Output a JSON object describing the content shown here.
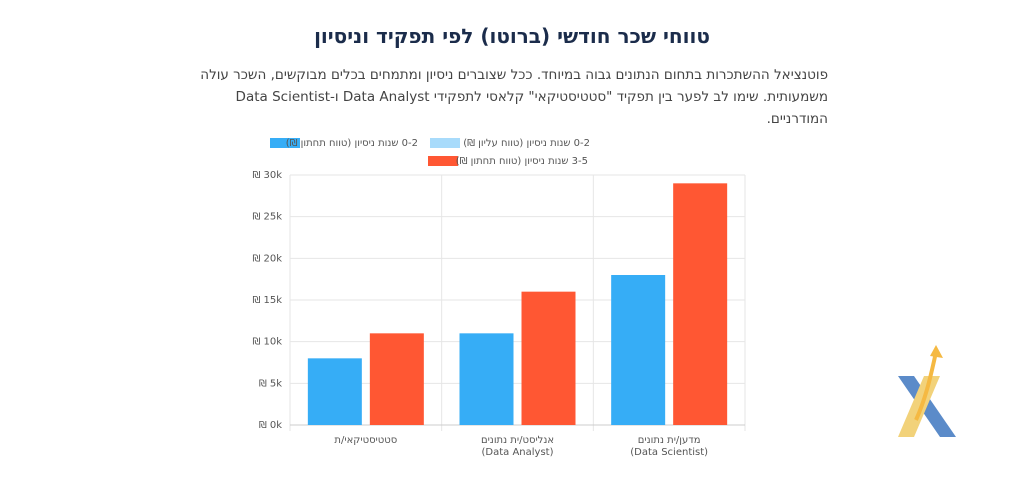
{
  "header": {
    "title": "טווחי שכר חודשי (ברוטו) לפי תפקיד וניסיון",
    "description": "פוטנציאל ההשתכרות בתחום הנתונים גבוה במיוחד. ככל שצוברים ניסיון ומתמחים בכלים מבוקשים, השכר עולה משמעותית. שימו לב לפער בין תפקיד \"סטטיסטיקאי\" קלאסי לתפקידי Data Analyst ו-Data Scientist המודרניים."
  },
  "chart_data": {
    "type": "bar",
    "categories": [
      [
        "סטטיסטיקאי/ת"
      ],
      [
        "אנליסט/ית נתונים",
        "(Data Analyst)"
      ],
      [
        "מדען/ית נתונים",
        "(Data Scientist)"
      ]
    ],
    "series": [
      {
        "name": "0-2 שנות ניסיון (טווח תחתון ₪)",
        "color": "#36adf6",
        "values": [
          8000,
          11000,
          18000
        ]
      },
      {
        "name": "0-2 שנות ניסיון (טווח עליון ₪)",
        "color": "#a8dbfb",
        "values": [
          null,
          null,
          null
        ]
      },
      {
        "name": "3-5 שנות ניסיון (טווח תחתון ₪)",
        "color": "#ff5733",
        "values": [
          11000,
          16000,
          29000
        ]
      }
    ],
    "ylim": [
      0,
      30000
    ],
    "yticks": [
      {
        "value": 0,
        "label": "₪ 0k"
      },
      {
        "value": 5000,
        "label": "₪ 5k"
      },
      {
        "value": 10000,
        "label": "₪ 10k"
      },
      {
        "value": 15000,
        "label": "₪ 15k"
      },
      {
        "value": 20000,
        "label": "₪ 20k"
      },
      {
        "value": 25000,
        "label": "₪ 25k"
      },
      {
        "value": 30000,
        "label": "₪ 30k"
      }
    ],
    "grid": true
  }
}
